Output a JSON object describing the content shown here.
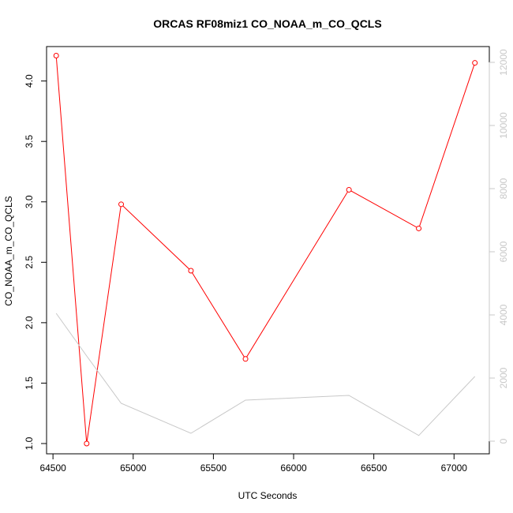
{
  "chart_data": {
    "type": "line",
    "title": "ORCAS RF08miz1 CO_NOAA_m_CO_QCLS",
    "xlabel": "UTC Seconds",
    "ylabel": "CO_NOAA_m_CO_QCLS",
    "xlim": [
      64460,
      67220
    ],
    "ylim": [
      0.915,
      4.285
    ],
    "y2lim": [
      -400,
      12500
    ],
    "x_ticks": [
      "64500",
      "65000",
      "65500",
      "66000",
      "66500",
      "67000"
    ],
    "y_ticks": [
      "1.0",
      "1.5",
      "2.0",
      "2.5",
      "3.0",
      "3.5",
      "4.0"
    ],
    "y2_ticks": [
      "0",
      "2000",
      "4000",
      "6000",
      "8000",
      "10000",
      "12000"
    ],
    "grid": false,
    "colors": {
      "primary": "#ff0000",
      "secondary": "#c8c8c8",
      "axis": "#000000"
    },
    "series": [
      {
        "axis": "left",
        "style": "line+points",
        "x": [
          64520,
          64710,
          64925,
          65360,
          65700,
          66345,
          66780,
          67130
        ],
        "y": [
          4.21,
          1.0,
          2.98,
          2.43,
          1.7,
          3.1,
          2.78,
          4.15
        ]
      },
      {
        "axis": "right",
        "style": "line",
        "x": [
          64520,
          64710,
          64925,
          65360,
          65700,
          66345,
          66780,
          67130
        ],
        "y": [
          4050,
          2700,
          1200,
          250,
          1300,
          1450,
          180,
          2050
        ]
      }
    ]
  }
}
